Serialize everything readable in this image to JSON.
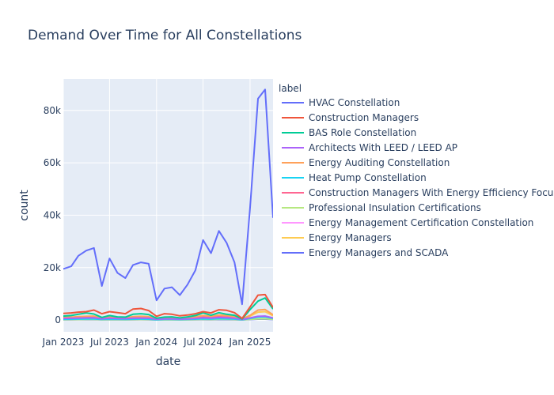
{
  "chart_data": {
    "type": "line",
    "title": "Demand Over Time for All Constellations",
    "xlabel": "date",
    "ylabel": "count",
    "legend_title": "label",
    "legend_position": "right",
    "grid": true,
    "ylim": [
      -4500,
      92000
    ],
    "xlim": [
      "2023-01-01",
      "2025-04-01"
    ],
    "x_ticks": [
      {
        "date": "2023-01-01",
        "label": "Jan 2023"
      },
      {
        "date": "2023-07-01",
        "label": "Jul 2023"
      },
      {
        "date": "2024-01-01",
        "label": "Jan 2024"
      },
      {
        "date": "2024-07-01",
        "label": "Jul 2024"
      },
      {
        "date": "2025-01-01",
        "label": "Jan 2025"
      }
    ],
    "y_ticks": [
      {
        "value": 0,
        "label": "0"
      },
      {
        "value": 20000,
        "label": "20k"
      },
      {
        "value": 40000,
        "label": "40k"
      },
      {
        "value": 60000,
        "label": "60k"
      },
      {
        "value": 80000,
        "label": "80k"
      }
    ],
    "x": [
      "2023-01-01",
      "2023-02-01",
      "2023-03-01",
      "2023-04-01",
      "2023-05-01",
      "2023-06-01",
      "2023-07-01",
      "2023-08-01",
      "2023-09-01",
      "2023-10-01",
      "2023-11-01",
      "2023-12-01",
      "2024-01-01",
      "2024-02-01",
      "2024-03-01",
      "2024-04-01",
      "2024-05-01",
      "2024-06-01",
      "2024-07-01",
      "2024-08-01",
      "2024-09-01",
      "2024-10-01",
      "2024-11-01",
      "2024-12-01",
      "2025-01-01",
      "2025-02-01",
      "2025-03-01",
      "2025-04-01"
    ],
    "series": [
      {
        "name": "HVAC Constellation",
        "color": "#636efa",
        "values": [
          19500,
          20500,
          24500,
          26500,
          27500,
          13000,
          23500,
          18000,
          16000,
          21000,
          22000,
          21500,
          7500,
          12000,
          12500,
          9500,
          13500,
          19000,
          30500,
          25500,
          34000,
          29500,
          22000,
          6000,
          43000,
          84500,
          88000,
          39000
        ]
      },
      {
        "name": "Construction Managers",
        "color": "#EF553B",
        "values": [
          2500,
          2700,
          3000,
          3200,
          3800,
          2400,
          3200,
          2800,
          2400,
          4200,
          4400,
          3600,
          1400,
          2400,
          2200,
          1600,
          1900,
          2400,
          3200,
          2700,
          3900,
          3700,
          2800,
          600,
          5000,
          9500,
          9700,
          4800
        ]
      },
      {
        "name": "BAS Role Constellation",
        "color": "#00cc96",
        "values": [
          1500,
          1700,
          2200,
          2700,
          2300,
          1000,
          1700,
          1200,
          1100,
          2200,
          2400,
          2100,
          700,
          1100,
          1200,
          800,
          1200,
          1700,
          2700,
          1800,
          2800,
          2200,
          1800,
          400,
          4000,
          7200,
          8400,
          4200
        ]
      },
      {
        "name": "Architects With LEED / LEED AP",
        "color": "#ab63fa",
        "values": [
          600,
          650,
          750,
          800,
          850,
          450,
          700,
          550,
          500,
          700,
          750,
          700,
          300,
          450,
          450,
          350,
          450,
          600,
          850,
          700,
          950,
          850,
          650,
          200,
          800,
          1400,
          1500,
          800
        ]
      },
      {
        "name": "Energy Auditing Constellation",
        "color": "#FFA15A",
        "values": [
          1000,
          1100,
          1300,
          1400,
          1500,
          800,
          1200,
          1000,
          900,
          1300,
          1400,
          1300,
          600,
          900,
          850,
          700,
          900,
          1200,
          1700,
          1400,
          1900,
          1700,
          1300,
          400,
          1800,
          3800,
          4000,
          2000
        ]
      },
      {
        "name": "Heat Pump Constellation",
        "color": "#19d3f3",
        "values": [
          300,
          320,
          360,
          380,
          400,
          220,
          340,
          280,
          250,
          330,
          350,
          340,
          150,
          230,
          230,
          190,
          240,
          320,
          450,
          370,
          500,
          450,
          350,
          100,
          600,
          1100,
          1200,
          600
        ]
      },
      {
        "name": "Construction Managers With Energy Efficiency Focus",
        "color": "#FF6692",
        "values": [
          700,
          750,
          900,
          950,
          1000,
          550,
          850,
          700,
          600,
          900,
          950,
          900,
          400,
          600,
          600,
          450,
          600,
          800,
          1100,
          900,
          1250,
          1100,
          850,
          250,
          700,
          1300,
          1400,
          700
        ]
      },
      {
        "name": "Professional Insulation Certifications",
        "color": "#B6E880",
        "values": [
          150,
          160,
          180,
          190,
          200,
          110,
          170,
          140,
          120,
          170,
          180,
          170,
          80,
          120,
          120,
          90,
          120,
          160,
          220,
          180,
          240,
          220,
          170,
          50,
          250,
          450,
          480,
          250
        ]
      },
      {
        "name": "Energy Management Certification Constellation",
        "color": "#FF97FF",
        "values": [
          400,
          420,
          480,
          500,
          520,
          300,
          450,
          380,
          340,
          460,
          480,
          460,
          200,
          320,
          320,
          250,
          320,
          430,
          600,
          500,
          650,
          600,
          460,
          130,
          700,
          1300,
          1400,
          700
        ]
      },
      {
        "name": "Energy Managers",
        "color": "#FECB52",
        "values": [
          800,
          850,
          1000,
          1050,
          1100,
          600,
          950,
          780,
          680,
          1000,
          1050,
          1000,
          450,
          680,
          680,
          520,
          680,
          900,
          1250,
          1050,
          1350,
          1250,
          950,
          280,
          1500,
          3000,
          3200,
          1600
        ]
      },
      {
        "name": "Energy Managers and SCADA",
        "color": "#636efa",
        "values": [
          100,
          110,
          130,
          140,
          150,
          80,
          120,
          100,
          90,
          120,
          130,
          120,
          50,
          80,
          80,
          60,
          80,
          110,
          150,
          120,
          170,
          150,
          120,
          40,
          180,
          320,
          340,
          170
        ]
      }
    ]
  }
}
